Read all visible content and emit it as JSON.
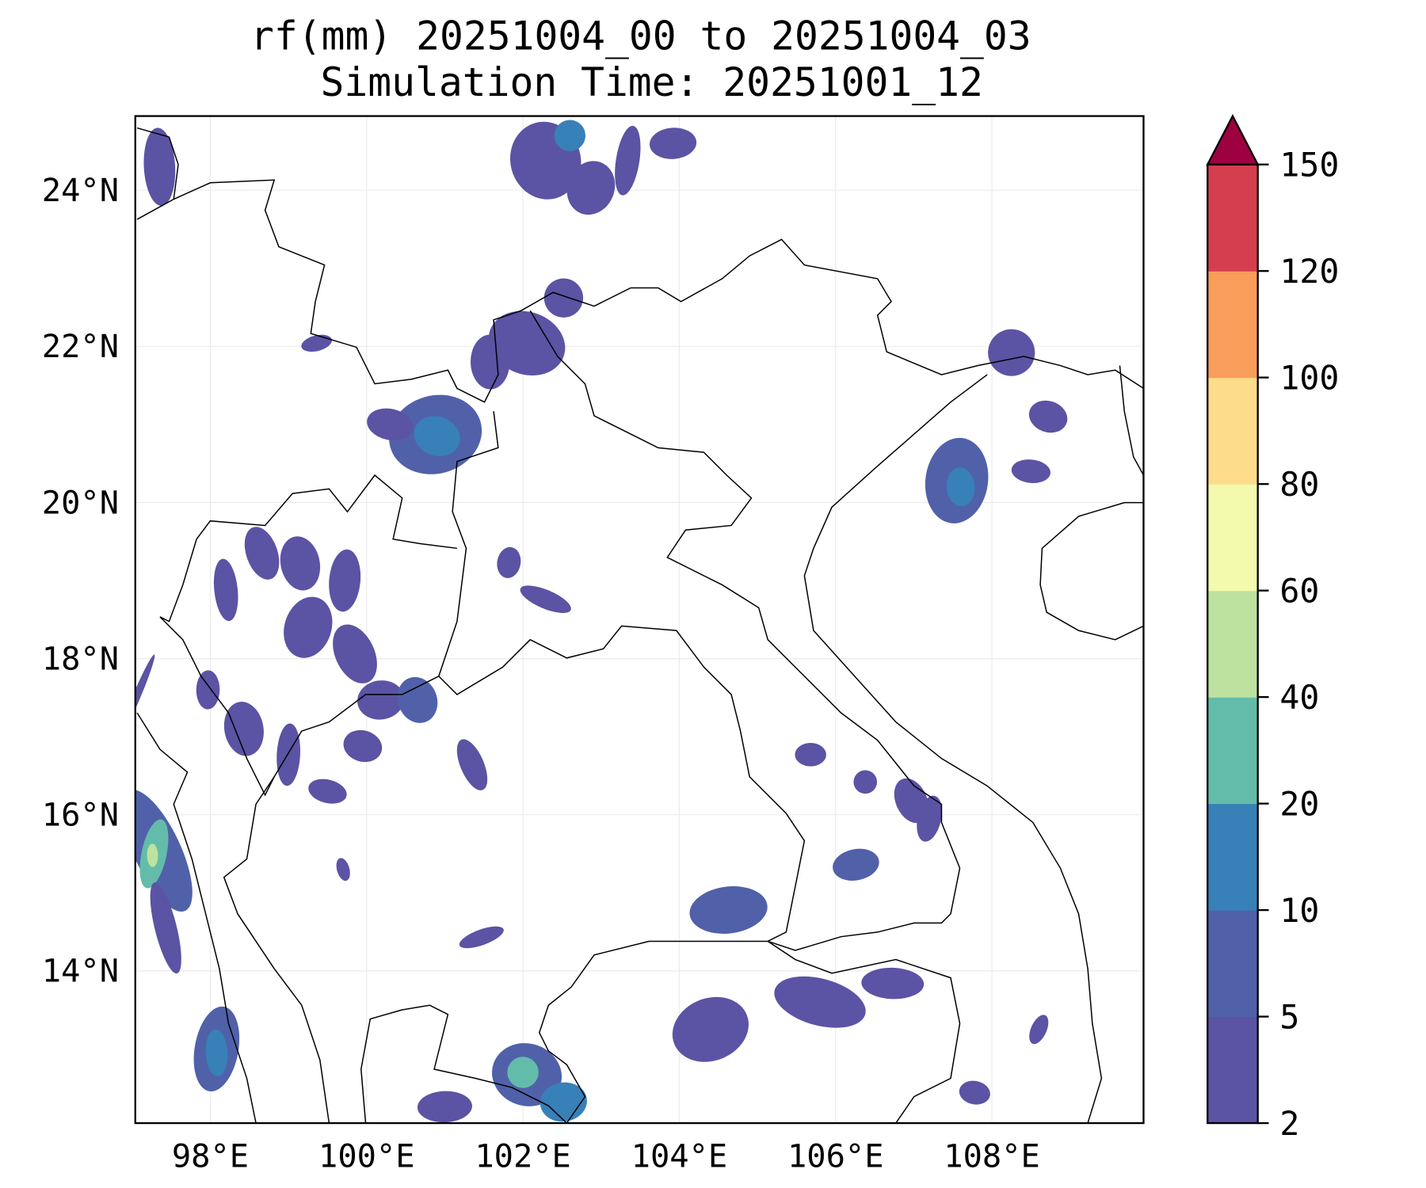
{
  "chart_data": {
    "type": "heatmap",
    "subtype": "filled-contour map",
    "title": "rf(mm) 20251004_00 to 20251004_03",
    "subtitle": "Simulation Time: 20251001_12",
    "xlabel": "",
    "ylabel": "",
    "xlim": [
      97.04,
      109.94
    ],
    "ylim": [
      12.05,
      24.95
    ],
    "grid": true,
    "x_ticks": [
      98,
      100,
      102,
      104,
      106,
      108
    ],
    "x_tick_labels": [
      "98°E",
      "100°E",
      "102°E",
      "104°E",
      "106°E",
      "108°E"
    ],
    "y_ticks": [
      24,
      22,
      20,
      18,
      16,
      14
    ],
    "y_tick_labels": [
      "24°N",
      "22°N",
      "20°N",
      "18°N",
      "16°N",
      "14°N"
    ],
    "colorbar": {
      "placement": "right",
      "extend": "max",
      "levels": [
        2,
        5,
        10,
        20,
        40,
        60,
        80,
        100,
        120,
        150
      ],
      "tick_labels": [
        "2",
        "5",
        "10",
        "20",
        "40",
        "60",
        "80",
        "100",
        "120",
        "150"
      ],
      "colors": [
        "#5b53a4",
        "#5061aa",
        "#3880b8",
        "#63bca9",
        "#bde2a0",
        "#f3faae",
        "#fddd8b",
        "#f99d5a",
        "#d53e4f"
      ],
      "over_color": "#9e0142"
    },
    "rain_cells_note": "lon, lat, half-width deg, half-height deg, rainfall mm",
    "rain_cells": [
      [
        97.32,
        15.54,
        0.3,
        0.85,
        8
      ],
      [
        97.28,
        15.5,
        0.16,
        0.45,
        25
      ],
      [
        97.26,
        15.48,
        0.07,
        0.15,
        50
      ],
      [
        97.43,
        14.55,
        0.14,
        0.6,
        4
      ],
      [
        97.05,
        17.5,
        0.05,
        0.6,
        3
      ],
      [
        98.08,
        13.0,
        0.28,
        0.55,
        8
      ],
      [
        98.08,
        12.95,
        0.14,
        0.3,
        15
      ],
      [
        100.88,
        20.87,
        0.6,
        0.5,
        7
      ],
      [
        100.9,
        20.85,
        0.3,
        0.25,
        15
      ],
      [
        107.55,
        20.28,
        0.4,
        0.55,
        7
      ],
      [
        107.6,
        20.2,
        0.18,
        0.25,
        12
      ],
      [
        108.25,
        21.92,
        0.3,
        0.3,
        4
      ],
      [
        108.72,
        21.1,
        0.25,
        0.2,
        4
      ],
      [
        108.5,
        20.4,
        0.25,
        0.15,
        4
      ],
      [
        104.63,
        14.78,
        0.5,
        0.3,
        6
      ],
      [
        101.47,
        14.43,
        0.3,
        0.1,
        4
      ],
      [
        102.05,
        12.67,
        0.45,
        0.4,
        8
      ],
      [
        102.0,
        12.7,
        0.2,
        0.2,
        25
      ],
      [
        102.52,
        12.32,
        0.3,
        0.25,
        15
      ],
      [
        104.4,
        13.25,
        0.5,
        0.4,
        4
      ],
      [
        105.8,
        13.6,
        0.6,
        0.3,
        4
      ],
      [
        106.73,
        13.84,
        0.4,
        0.2,
        4
      ],
      [
        106.26,
        15.36,
        0.3,
        0.2,
        6
      ],
      [
        106.97,
        16.18,
        0.2,
        0.3,
        4
      ],
      [
        107.2,
        15.95,
        0.15,
        0.3,
        4
      ],
      [
        105.68,
        16.77,
        0.2,
        0.15,
        4
      ],
      [
        106.38,
        16.42,
        0.15,
        0.15,
        4
      ],
      [
        108.6,
        13.25,
        0.1,
        0.2,
        4
      ],
      [
        107.78,
        12.44,
        0.2,
        0.15,
        4
      ],
      [
        101.0,
        12.26,
        0.35,
        0.2,
        4
      ],
      [
        102.29,
        24.38,
        0.45,
        0.5,
        4
      ],
      [
        102.87,
        24.03,
        0.3,
        0.35,
        4
      ],
      [
        103.34,
        24.38,
        0.15,
        0.45,
        4
      ],
      [
        103.92,
        24.6,
        0.3,
        0.2,
        4
      ],
      [
        102.6,
        24.7,
        0.2,
        0.2,
        12
      ],
      [
        102.05,
        22.04,
        0.5,
        0.4,
        4
      ],
      [
        102.52,
        22.62,
        0.25,
        0.25,
        4
      ],
      [
        98.2,
        18.88,
        0.15,
        0.4,
        4
      ],
      [
        98.66,
        19.35,
        0.2,
        0.35,
        4
      ],
      [
        99.25,
        18.4,
        0.3,
        0.4,
        4
      ],
      [
        99.72,
        19.0,
        0.2,
        0.4,
        4
      ],
      [
        100.18,
        17.47,
        0.3,
        0.25,
        4
      ],
      [
        100.65,
        17.47,
        0.25,
        0.3,
        6
      ],
      [
        99.95,
        16.88,
        0.25,
        0.2,
        4
      ],
      [
        99.0,
        16.77,
        0.15,
        0.4,
        4
      ],
      [
        98.43,
        17.1,
        0.25,
        0.35,
        4
      ],
      [
        101.35,
        16.64,
        0.15,
        0.35,
        4
      ],
      [
        99.5,
        16.3,
        0.25,
        0.15,
        4
      ],
      [
        97.97,
        17.6,
        0.15,
        0.25,
        4
      ],
      [
        99.15,
        19.22,
        0.25,
        0.35,
        4
      ],
      [
        99.85,
        18.06,
        0.25,
        0.4,
        4
      ],
      [
        100.3,
        21.0,
        0.3,
        0.2,
        4
      ],
      [
        101.58,
        21.8,
        0.25,
        0.35,
        4
      ],
      [
        99.36,
        22.04,
        0.2,
        0.1,
        4
      ],
      [
        102.29,
        18.76,
        0.35,
        0.12,
        4
      ],
      [
        101.82,
        19.23,
        0.15,
        0.2,
        4
      ],
      [
        97.35,
        24.3,
        0.2,
        0.5,
        4
      ],
      [
        99.7,
        15.3,
        0.08,
        0.15,
        4
      ]
    ]
  }
}
